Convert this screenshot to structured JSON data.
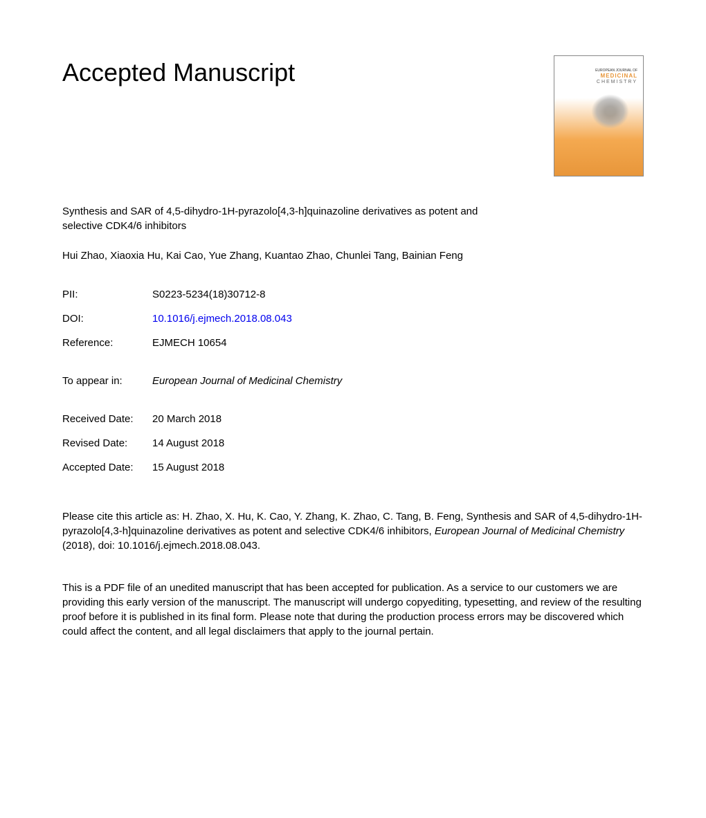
{
  "heading": "Accepted Manuscript",
  "article_title": "Synthesis and SAR of 4,5-dihydro-1H-pyrazolo[4,3-h]quinazoline derivatives as potent and selective CDK4/6 inhibitors",
  "authors": "Hui Zhao, Xiaoxia Hu, Kai Cao, Yue Zhang, Kuantao Zhao, Chunlei Tang, Bainian Feng",
  "info": {
    "pii_label": "PII:",
    "pii_value": "S0223-5234(18)30712-8",
    "doi_label": "DOI:",
    "doi_value": "10.1016/j.ejmech.2018.08.043",
    "reference_label": "Reference:",
    "reference_value": "EJMECH 10654",
    "appear_label": "To appear in:",
    "appear_value": "European Journal of Medicinal Chemistry",
    "received_label": "Received Date:",
    "received_value": "20 March 2018",
    "revised_label": "Revised Date:",
    "revised_value": "14 August 2018",
    "accepted_label": "Accepted Date:",
    "accepted_value": "15 August 2018"
  },
  "citation": {
    "prefix": "Please cite this article as: H. Zhao, X. Hu, K. Cao, Y. Zhang, K. Zhao, C. Tang, B. Feng, Synthesis and SAR of 4,5-dihydro-1H-pyrazolo[4,3-h]quinazoline derivatives as potent and selective CDK4/6 inhibitors, ",
    "journal": "European Journal of Medicinal Chemistry",
    "suffix": " (2018), doi: 10.1016/j.ejmech.2018.08.043."
  },
  "disclaimer": "This is a PDF file of an unedited manuscript that has been accepted for publication. As a service to our customers we are providing this early version of the manuscript. The manuscript will undergo copyediting, typesetting, and review of the resulting proof before it is published in its final form. Please note that during the production process errors may be discovered which could affect the content, and all legal disclaimers that apply to the journal pertain.",
  "cover": {
    "line1": "EUROPEAN JOURNAL OF",
    "line2": "MEDICINAL",
    "line3": "CHEMISTRY"
  },
  "colors": {
    "text": "#000000",
    "link": "#0000ee",
    "cover_orange": "#e8963a",
    "background": "#ffffff"
  },
  "fonts": {
    "body_size": 15,
    "heading_size": 36
  }
}
